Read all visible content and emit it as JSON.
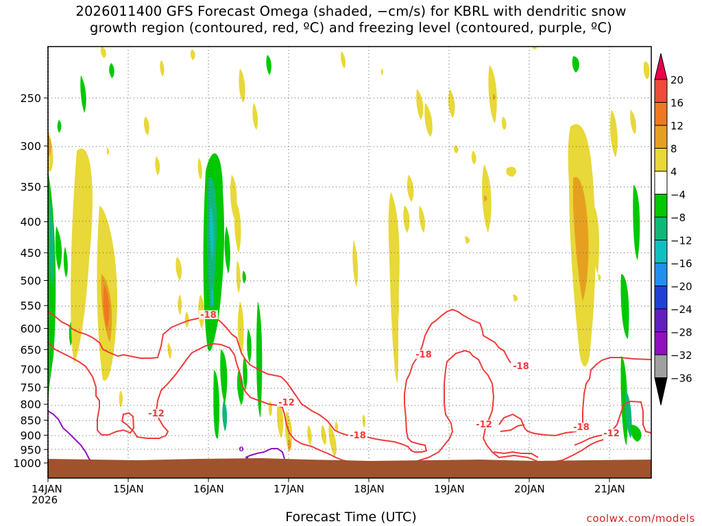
{
  "title_line1": "2026011400 GFS Forecast Omega (shaded, −cm/s) for KBRL with dendritic snow",
  "title_line2": "growth region (contoured, red, ºC) and freezing level (contoured, purple, ºC)",
  "xlabel": "Forecast Time (UTC)",
  "credit": "coolwx.com/models",
  "year_label": "2026",
  "chart_data": {
    "type": "heatmap",
    "title": "2026011400 GFS Forecast Omega (shaded, −cm/s) for KBRL with dendritic snow growth region (contoured, red, ºC) and freezing level (contoured, purple, ºC)",
    "xlabel": "Forecast Time (UTC)",
    "ylabel": "",
    "x_ticks": [
      "14JAN",
      "15JAN",
      "16JAN",
      "17JAN",
      "18JAN",
      "19JAN",
      "20JAN",
      "21JAN"
    ],
    "y_ticks": [
      250,
      300,
      350,
      400,
      450,
      500,
      550,
      600,
      650,
      700,
      750,
      800,
      850,
      900,
      950,
      1000
    ],
    "y_axis": "pressure (hPa), inverted",
    "grid": true,
    "colorbar": {
      "labels": [
        20,
        16,
        12,
        8,
        4,
        -4,
        -8,
        -12,
        -16,
        -20,
        -24,
        -28,
        -32,
        -36
      ],
      "colors": [
        "#e8004a",
        "#f04a3a",
        "#f07820",
        "#e6a020",
        "#e8d838",
        "#ffffff",
        "#00c800",
        "#10b878",
        "#10c0c0",
        "#2090f0",
        "#2040d8",
        "#6020c0",
        "#9010c0",
        "#a0a0a0",
        "#000000"
      ]
    },
    "contour_labels": [
      {
        "text": "-18",
        "color": "#f03a3a"
      },
      {
        "text": "-12",
        "color": "#f03a3a"
      },
      {
        "text": "-12",
        "color": "#f03a3a"
      },
      {
        "text": "-18",
        "color": "#f03a3a"
      },
      {
        "text": "-18",
        "color": "#f03a3a"
      },
      {
        "text": "-18",
        "color": "#f03a3a"
      },
      {
        "text": "-12",
        "color": "#f03a3a"
      },
      {
        "text": "-18",
        "color": "#f03a3a"
      },
      {
        "text": "-12",
        "color": "#f03a3a"
      },
      {
        "text": "0",
        "color": "#9010c0"
      }
    ]
  }
}
